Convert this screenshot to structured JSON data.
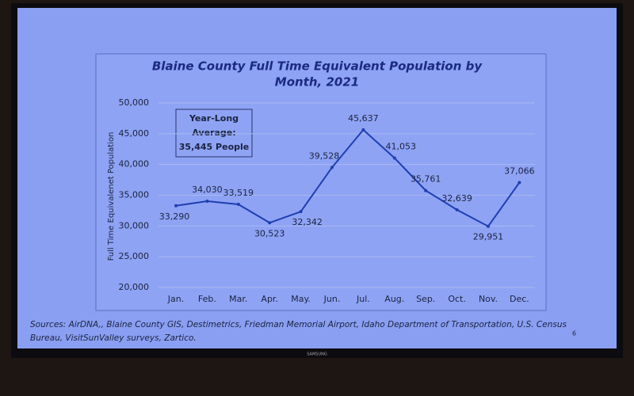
{
  "chart_data": {
    "type": "line",
    "title_lines": [
      "Blaine County Full Time Equivalent Population by",
      "Month, 2021"
    ],
    "y_label": "Full Time Equivalenet Population",
    "categories": [
      "Jan.",
      "Feb.",
      "Mar.",
      "Apr.",
      "May.",
      "Jun.",
      "Jul.",
      "Aug.",
      "Sep.",
      "Oct.",
      "Nov.",
      "Dec."
    ],
    "values": [
      33290,
      34030,
      33519,
      30523,
      32342,
      39528,
      45637,
      41053,
      35761,
      32639,
      29951,
      37066
    ],
    "value_labels": [
      "33,290",
      "34,030",
      "33,519",
      "30,523",
      "32,342",
      "39,528",
      "45,637",
      "41,053",
      "35,761",
      "32,639",
      "29,951",
      "37,066"
    ],
    "color": "#1f3fb0",
    "ylim": [
      20000,
      50000
    ],
    "yticks": [
      {
        "value": 20000,
        "label": "20,000"
      },
      {
        "value": 25000,
        "label": "25,000"
      },
      {
        "value": 30000,
        "label": "30,000"
      },
      {
        "value": 35000,
        "label": "35,000"
      },
      {
        "value": 40000,
        "label": "40,000"
      },
      {
        "value": 45000,
        "label": "45,000"
      },
      {
        "value": 50000,
        "label": "50,000"
      }
    ],
    "grid": true,
    "annotation_lines": [
      "Year-Long",
      "Average:",
      "35,445 People"
    ],
    "sources_lines": [
      "Sources: AirDNA,, Blaine County GIS, Destimetrics, Friedman Memorial Airport, Idaho Department of Transportation, U.S. Census",
      "Bureau, VisitSunValley surveys, Zartico."
    ],
    "page_number": "6"
  },
  "device": {
    "brand": "SAMSUNG"
  }
}
